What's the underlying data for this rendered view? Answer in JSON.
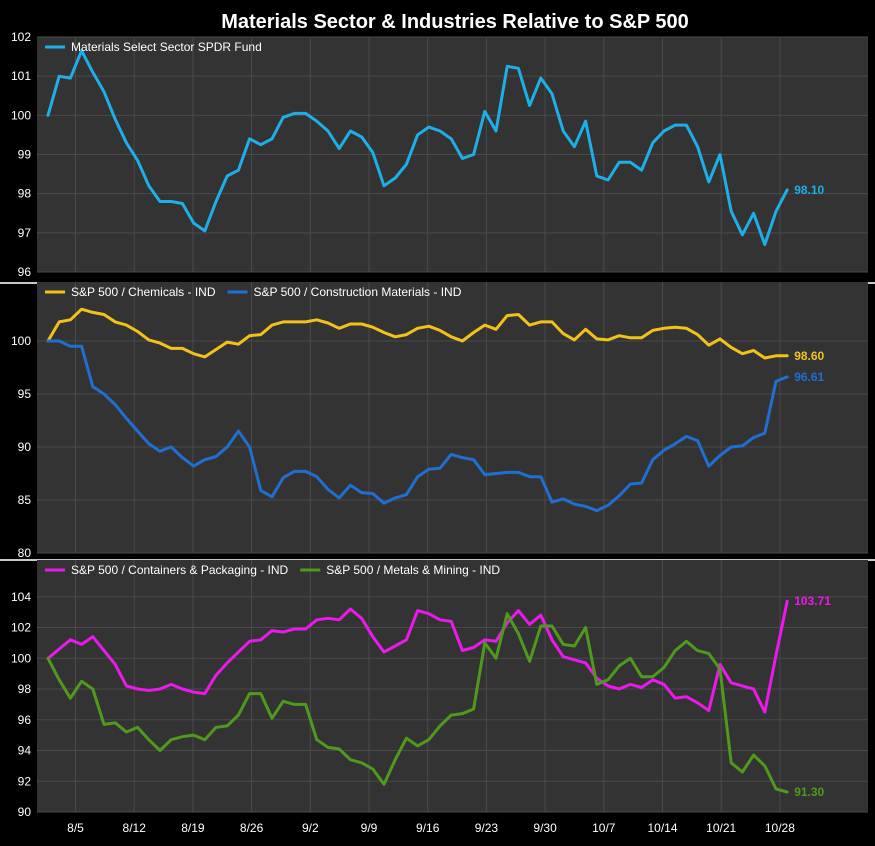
{
  "title": "Materials Sector & Industries Relative to S&P 500",
  "colors": {
    "background": "#000000",
    "plot_bg": "#333333",
    "grid": "#4a4a4a",
    "separator": "#c8c8c8",
    "materials": "#1eaee8",
    "chemicals": "#f2c21b",
    "construction": "#1f6fd2",
    "containers": "#ec19ec",
    "metals": "#4f9a1c"
  },
  "x_tick_labels": [
    "8/5",
    "8/12",
    "8/19",
    "8/26",
    "9/2",
    "9/9",
    "9/16",
    "9/23",
    "9/30",
    "10/7",
    "10/14",
    "10/21",
    "10/28"
  ],
  "chart_data": [
    {
      "type": "line",
      "panel": 1,
      "ylim": [
        96,
        102
      ],
      "yticks": [
        96,
        97,
        98,
        99,
        100,
        101,
        102
      ],
      "legend": "top-left",
      "grid": true,
      "series": [
        {
          "name": "Materials Select Sector SPDR Fund",
          "color_key": "materials",
          "end_label": "98.10",
          "values": [
            100.0,
            101.0,
            100.95,
            101.65,
            101.1,
            100.6,
            99.9,
            99.3,
            98.85,
            98.2,
            97.8,
            97.8,
            97.75,
            97.25,
            97.05,
            97.8,
            98.45,
            98.6,
            99.4,
            99.25,
            99.4,
            99.95,
            100.05,
            100.05,
            99.85,
            99.6,
            99.15,
            99.6,
            99.45,
            99.05,
            98.2,
            98.4,
            98.75,
            99.5,
            99.7,
            99.6,
            99.4,
            98.9,
            99.0,
            100.1,
            99.6,
            101.25,
            101.2,
            100.25,
            100.95,
            100.55,
            99.6,
            99.2,
            99.85,
            98.45,
            98.35,
            98.8,
            98.8,
            98.6,
            99.3,
            99.6,
            99.75,
            99.75,
            99.2,
            98.3,
            99.0,
            97.55,
            96.95,
            97.5,
            96.7,
            97.55,
            98.1
          ]
        }
      ]
    },
    {
      "type": "line",
      "panel": 2,
      "ylim": [
        80,
        105
      ],
      "yticks": [
        80,
        85,
        90,
        95,
        100
      ],
      "legend": "top-left",
      "grid": true,
      "series": [
        {
          "name": "S&P 500 / Chemicals - IND",
          "color_key": "chemicals",
          "end_label": "98.60",
          "values": [
            100.0,
            101.8,
            102.0,
            103.0,
            102.7,
            102.5,
            101.8,
            101.5,
            100.9,
            100.1,
            99.8,
            99.3,
            99.3,
            98.8,
            98.5,
            99.2,
            99.9,
            99.7,
            100.5,
            100.6,
            101.5,
            101.8,
            101.8,
            101.8,
            102.0,
            101.7,
            101.2,
            101.6,
            101.6,
            101.3,
            100.8,
            100.4,
            100.6,
            101.2,
            101.4,
            101.0,
            100.4,
            100.0,
            100.8,
            101.5,
            101.1,
            102.4,
            102.5,
            101.5,
            101.8,
            101.8,
            100.7,
            100.1,
            101.1,
            100.2,
            100.1,
            100.5,
            100.3,
            100.3,
            101.0,
            101.2,
            101.3,
            101.2,
            100.6,
            99.6,
            100.2,
            99.4,
            98.8,
            99.1,
            98.4,
            98.6,
            98.6
          ]
        },
        {
          "name": "S&P 500 / Construction Materials - IND",
          "color_key": "construction",
          "end_label": "96.61",
          "values": [
            100.0,
            100.0,
            99.5,
            99.5,
            95.7,
            95.0,
            94.0,
            92.7,
            91.5,
            90.3,
            89.6,
            90.0,
            89.0,
            88.2,
            88.8,
            89.1,
            90.0,
            91.5,
            90.0,
            85.9,
            85.3,
            87.1,
            87.7,
            87.7,
            87.2,
            86.0,
            85.2,
            86.4,
            85.7,
            85.6,
            84.7,
            85.2,
            85.5,
            87.2,
            87.9,
            88.0,
            89.3,
            89.0,
            88.8,
            87.4,
            87.5,
            87.6,
            87.6,
            87.2,
            87.2,
            84.8,
            85.1,
            84.6,
            84.4,
            84.0,
            84.5,
            85.4,
            86.5,
            86.6,
            88.8,
            89.7,
            90.3,
            91.0,
            90.6,
            88.2,
            89.2,
            90.0,
            90.1,
            90.9,
            91.3,
            96.2,
            96.61
          ]
        }
      ]
    },
    {
      "type": "line",
      "panel": 3,
      "ylim": [
        90,
        106
      ],
      "yticks": [
        90,
        92,
        94,
        96,
        98,
        100,
        102,
        104
      ],
      "legend": "top-left",
      "grid": true,
      "series": [
        {
          "name": "S&P 500 / Containers & Packaging - IND",
          "color_key": "containers",
          "end_label": "103.71",
          "values": [
            100.0,
            100.6,
            101.2,
            100.9,
            101.4,
            100.5,
            99.6,
            98.2,
            98.0,
            97.9,
            98.0,
            98.3,
            98.0,
            97.8,
            97.7,
            98.9,
            99.7,
            100.4,
            101.1,
            101.2,
            101.8,
            101.7,
            101.9,
            101.9,
            102.5,
            102.6,
            102.5,
            103.2,
            102.6,
            101.4,
            100.4,
            100.8,
            101.2,
            103.1,
            102.9,
            102.5,
            102.4,
            100.5,
            100.7,
            101.2,
            101.1,
            102.3,
            103.1,
            102.2,
            102.8,
            101.2,
            100.1,
            99.9,
            99.7,
            98.7,
            98.2,
            98.0,
            98.3,
            98.1,
            98.6,
            98.3,
            97.4,
            97.5,
            97.1,
            96.6,
            99.6,
            98.4,
            98.2,
            98.0,
            96.5,
            100.2,
            103.71
          ]
        },
        {
          "name": "S&P 500 / Metals & Mining - IND",
          "color_key": "metals",
          "end_label": "91.30",
          "values": [
            100.0,
            98.6,
            97.4,
            98.5,
            98.0,
            95.7,
            95.8,
            95.2,
            95.5,
            94.7,
            94.0,
            94.7,
            94.9,
            95.0,
            94.7,
            95.5,
            95.6,
            96.3,
            97.7,
            97.7,
            96.1,
            97.2,
            97.0,
            97.0,
            94.7,
            94.2,
            94.1,
            93.4,
            93.2,
            92.8,
            91.8,
            93.4,
            94.8,
            94.3,
            94.7,
            95.6,
            96.3,
            96.4,
            96.7,
            101.0,
            100.0,
            102.9,
            101.6,
            99.8,
            102.1,
            102.1,
            100.9,
            100.8,
            102.0,
            98.3,
            98.6,
            99.5,
            100.0,
            98.8,
            98.8,
            99.4,
            100.5,
            101.1,
            100.5,
            100.3,
            99.3,
            93.2,
            92.6,
            93.7,
            93.0,
            91.5,
            91.3
          ]
        }
      ]
    }
  ]
}
